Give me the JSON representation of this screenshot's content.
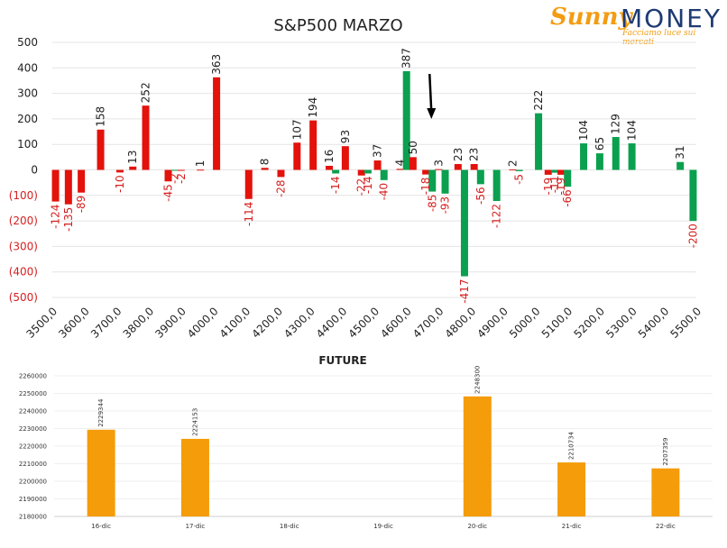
{
  "logo": {
    "name_part1": "Sunny",
    "name_part2": "MONEY",
    "tagline": "Facciamo luce sui mercati"
  },
  "colors": {
    "red": "#e3120b",
    "green": "#0aa04f",
    "orange": "#f59c0a",
    "negative_tick": "#d61f1f",
    "grid": "#e4e4e4"
  },
  "chart_data": [
    {
      "type": "bar",
      "title": "S&P500 MARZO",
      "ylim": [
        -500,
        500
      ],
      "yticks": [
        500,
        400,
        300,
        200,
        100,
        0,
        -100,
        -200,
        -300,
        -400,
        -500
      ],
      "ytick_labels": [
        "500",
        "400",
        "300",
        "200",
        "100",
        "0",
        "(100)",
        "(200)",
        "(300)",
        "(400)",
        "(500)"
      ],
      "xlim": [
        3500,
        5500
      ],
      "xticks": [
        3500,
        3600,
        3700,
        3800,
        3900,
        4000,
        4100,
        4200,
        4300,
        4400,
        4500,
        4600,
        4700,
        4800,
        4900,
        5000,
        5100,
        5200,
        5300,
        5400,
        5500
      ],
      "xtick_labels": [
        "3500,0",
        "3600,0",
        "3700,0",
        "3800,0",
        "3900,0",
        "4000,0",
        "4100,0",
        "4200,0",
        "4300,0",
        "4400,0",
        "4500,0",
        "4600,0",
        "4700,0",
        "4800,0",
        "4900,0",
        "5000,0",
        "5100,0",
        "5200,0",
        "5300,0",
        "5400,0",
        "5500,0"
      ],
      "grid": true,
      "annotation": {
        "type": "arrow-down",
        "strike": 4680
      },
      "bars": [
        {
          "strike": 3510,
          "value": -124,
          "color": "red",
          "label": "-124"
        },
        {
          "strike": 3550,
          "value": -135,
          "color": "red",
          "label": "-135"
        },
        {
          "strike": 3590,
          "value": -89,
          "color": "red",
          "label": "-89"
        },
        {
          "strike": 3650,
          "value": 158,
          "color": "red",
          "label": "158"
        },
        {
          "strike": 3710,
          "value": -10,
          "color": "red",
          "label": "-10"
        },
        {
          "strike": 3750,
          "value": 13,
          "color": "red",
          "label": "13"
        },
        {
          "strike": 3790,
          "value": 252,
          "color": "red",
          "label": "252"
        },
        {
          "strike": 3860,
          "value": -45,
          "color": "red",
          "label": "-45"
        },
        {
          "strike": 3880,
          "value": -2,
          "color": "green",
          "label": "-2"
        },
        {
          "strike": 3900,
          "value": -2,
          "color": "red",
          "label": "-2"
        },
        {
          "strike": 3960,
          "value": 1,
          "color": "red",
          "label": "1"
        },
        {
          "strike": 4010,
          "value": 363,
          "color": "red",
          "label": "363"
        },
        {
          "strike": 4110,
          "value": -114,
          "color": "red",
          "label": "-114"
        },
        {
          "strike": 4160,
          "value": 8,
          "color": "red",
          "label": "8"
        },
        {
          "strike": 4210,
          "value": -28,
          "color": "red",
          "label": "-28"
        },
        {
          "strike": 4260,
          "value": 107,
          "color": "red",
          "label": "107"
        },
        {
          "strike": 4310,
          "value": 194,
          "color": "red",
          "label": "194"
        },
        {
          "strike": 4360,
          "value": 16,
          "color": "red",
          "label": "16"
        },
        {
          "strike": 4380,
          "value": -14,
          "color": "green",
          "label": "-14"
        },
        {
          "strike": 4410,
          "value": 93,
          "color": "red",
          "label": "93"
        },
        {
          "strike": 4460,
          "value": -22,
          "color": "red",
          "label": "-22"
        },
        {
          "strike": 4480,
          "value": -14,
          "color": "green",
          "label": "-14"
        },
        {
          "strike": 4510,
          "value": 37,
          "color": "red",
          "label": "37"
        },
        {
          "strike": 4530,
          "value": -40,
          "color": "green",
          "label": "-40"
        },
        {
          "strike": 4580,
          "value": 4,
          "color": "red",
          "label": "4"
        },
        {
          "strike": 4600,
          "value": 387,
          "color": "green",
          "label": "387"
        },
        {
          "strike": 4620,
          "value": 50,
          "color": "red",
          "label": "50"
        },
        {
          "strike": 4660,
          "value": -18,
          "color": "red",
          "label": "-18"
        },
        {
          "strike": 4680,
          "value": -85,
          "color": "green",
          "label": "-85"
        },
        {
          "strike": 4700,
          "value": 3,
          "color": "red",
          "label": "3"
        },
        {
          "strike": 4720,
          "value": -93,
          "color": "green",
          "label": "-93"
        },
        {
          "strike": 4760,
          "value": 23,
          "color": "red",
          "label": "23"
        },
        {
          "strike": 4780,
          "value": -417,
          "color": "green",
          "label": "-417"
        },
        {
          "strike": 4810,
          "value": 23,
          "color": "red",
          "label": "23"
        },
        {
          "strike": 4830,
          "value": -56,
          "color": "green",
          "label": "-56"
        },
        {
          "strike": 4880,
          "value": -122,
          "color": "green",
          "label": "-122"
        },
        {
          "strike": 4930,
          "value": 2,
          "color": "red",
          "label": "2"
        },
        {
          "strike": 4950,
          "value": -5,
          "color": "green",
          "label": "-5"
        },
        {
          "strike": 5010,
          "value": 222,
          "color": "green",
          "label": "222"
        },
        {
          "strike": 5040,
          "value": -19,
          "color": "red",
          "label": "-19"
        },
        {
          "strike": 5060,
          "value": -11,
          "color": "green",
          "label": "-11"
        },
        {
          "strike": 5080,
          "value": -19,
          "color": "red",
          "label": "-19"
        },
        {
          "strike": 5100,
          "value": -66,
          "color": "green",
          "label": "-66"
        },
        {
          "strike": 5150,
          "value": 104,
          "color": "green",
          "label": "104"
        },
        {
          "strike": 5200,
          "value": 65,
          "color": "green",
          "label": "65"
        },
        {
          "strike": 5250,
          "value": 129,
          "color": "green",
          "label": "129"
        },
        {
          "strike": 5300,
          "value": 104,
          "color": "green",
          "label": "104"
        },
        {
          "strike": 5450,
          "value": 31,
          "color": "green",
          "label": "31"
        },
        {
          "strike": 5490,
          "value": -200,
          "color": "green",
          "label": "-200"
        }
      ]
    },
    {
      "type": "bar",
      "title": "FUTURE",
      "categories": [
        "16-dic",
        "17-dic",
        "18-dic",
        "19-dic",
        "20-dic",
        "21-dic",
        "22-dic"
      ],
      "values": [
        2229344,
        2224153,
        null,
        null,
        2248300,
        2210734,
        2207359
      ],
      "value_labels": [
        "2229344",
        "2224153",
        "",
        "",
        "2248300",
        "2210734",
        "2207359"
      ],
      "ylim": [
        2180000,
        2260000
      ],
      "yticks": [
        2260000,
        2250000,
        2240000,
        2230000,
        2220000,
        2210000,
        2200000,
        2190000,
        2180000
      ],
      "ytick_labels": [
        "2260000",
        "2250000",
        "2240000",
        "2230000",
        "2220000",
        "2210000",
        "2200000",
        "2190000",
        "2180000"
      ],
      "color": "orange"
    }
  ]
}
